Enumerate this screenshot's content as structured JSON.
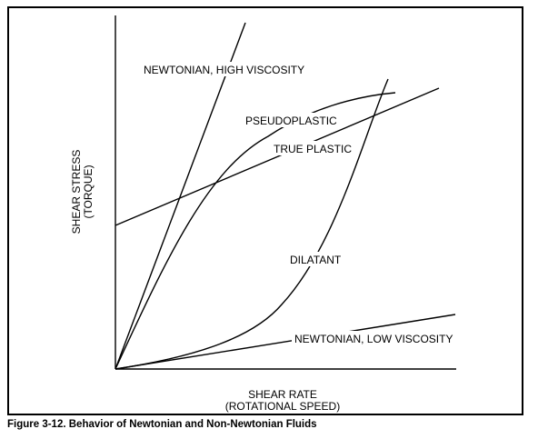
{
  "figure": {
    "caption": "Figure 3-12. Behavior of Newtonian and Non-Newtonian Fluids",
    "y_axis_label_line1": "SHEAR STRESS",
    "y_axis_label_line2": "(TORQUE)",
    "x_axis_label_line1": "SHEAR RATE",
    "x_axis_label_line2": "(ROTATIONAL SPEED)"
  },
  "curves": {
    "newtonian_high": "NEWTONIAN, HIGH VISCOSITY",
    "pseudoplastic": "PSEUDOPLASTIC",
    "true_plastic": "TRUE PLASTIC",
    "dilatant": "DILATANT",
    "newtonian_low": "NEWTONIAN, LOW VISCOSITY"
  },
  "colors": {
    "line": "#000000",
    "background": "#ffffff"
  }
}
